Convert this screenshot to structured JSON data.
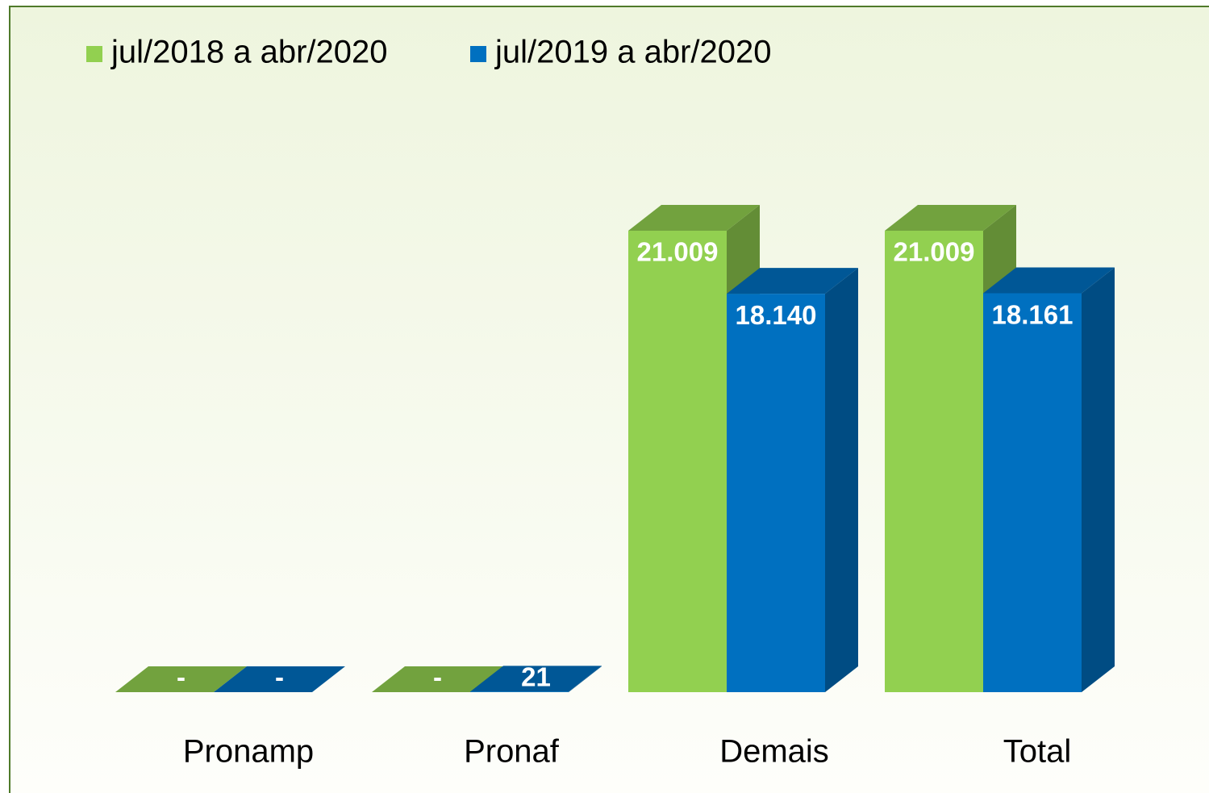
{
  "chart_data": {
    "type": "bar3d",
    "categories": [
      "Pronamp",
      "Pronaf",
      "Demais",
      "Total"
    ],
    "series": [
      {
        "name": "jul/2018 a abr/2020",
        "color": "#92d050",
        "values": [
          0,
          0,
          21009,
          21009
        ],
        "value_labels": [
          "-",
          "-",
          "21.009",
          "21.009"
        ]
      },
      {
        "name": "jul/2019 a abr/2020",
        "color": "#0070c0",
        "values": [
          0,
          21,
          18140,
          18161
        ],
        "value_labels": [
          "-",
          "21",
          "18.140",
          "18.161"
        ]
      }
    ],
    "legend": "top-left"
  }
}
